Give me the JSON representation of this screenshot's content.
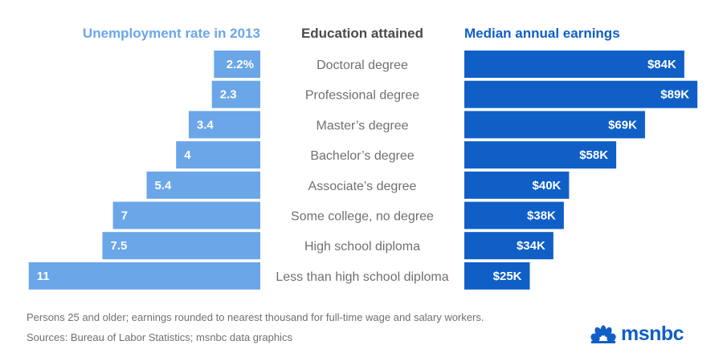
{
  "chart_data": {
    "type": "bar",
    "left_header": "Unemployment rate in 2013",
    "center_header": "Education attained",
    "right_header": "Median annual earnings",
    "categories": [
      "Doctoral degree",
      "Professional degree",
      "Master’s degree",
      "Bachelor’s degree",
      "Associate’s degree",
      "Some college, no degree",
      "High school diploma",
      "Less than high school diploma"
    ],
    "series": [
      {
        "name": "Unemployment rate in 2013",
        "values": [
          2.2,
          2.3,
          3.4,
          4,
          5.4,
          7,
          7.5,
          11
        ],
        "labels": [
          "2.2%",
          "2.3",
          "3.4",
          "4",
          "5.4",
          "7",
          "7.5",
          "11"
        ],
        "color": "#6aa6e8"
      },
      {
        "name": "Median annual earnings",
        "values": [
          84,
          89,
          69,
          58,
          40,
          38,
          34,
          25
        ],
        "labels": [
          "$84K",
          "$89K",
          "$69K",
          "$58K",
          "$40K",
          "$38K",
          "$34K",
          "$25K"
        ],
        "color": "#0f5fc7"
      }
    ]
  },
  "colors": {
    "left_header": "#6aa6e8",
    "center_header": "#4a4a4a",
    "right_header": "#0f5fc7",
    "category_text": "#707070"
  },
  "footnote": "Persons 25 and older; earnings rounded to nearest thousand for full-time wage and salary workers.",
  "sources": "Sources: Bureau of Labor Statistics; msnbc data graphics",
  "logo": {
    "text": "msnbc",
    "icon": "peacock-icon"
  }
}
